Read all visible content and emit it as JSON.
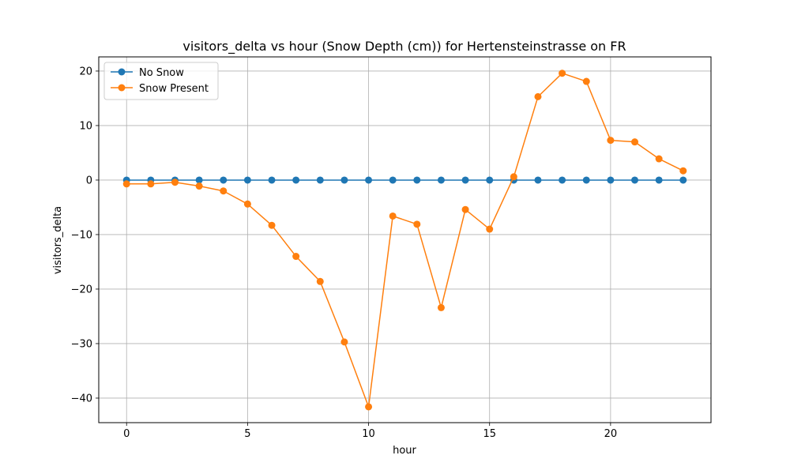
{
  "chart_data": {
    "type": "line",
    "title": "visitors_delta vs hour (Snow Depth (cm)) for Hertensteinstrasse on FR",
    "xlabel": "hour",
    "ylabel": "visitors_delta",
    "xlim": [
      -1.15,
      24.15
    ],
    "ylim": [
      -44.5,
      22.6
    ],
    "xticks": [
      0,
      5,
      10,
      15,
      20
    ],
    "yticks": [
      -40,
      -30,
      -20,
      -10,
      0,
      10,
      20
    ],
    "grid": true,
    "legend_position": "top-left",
    "x": [
      0,
      1,
      2,
      3,
      4,
      5,
      6,
      7,
      8,
      9,
      10,
      11,
      12,
      13,
      14,
      15,
      16,
      17,
      18,
      19,
      20,
      21,
      22,
      23
    ],
    "series": [
      {
        "name": "No Snow",
        "color": "#1f77b4",
        "values": [
          0,
          0,
          0,
          0,
          0,
          0,
          0,
          0,
          0,
          0,
          0,
          0,
          0,
          0,
          0,
          0,
          0,
          0,
          0,
          0,
          0,
          0,
          0,
          0
        ]
      },
      {
        "name": "Snow Present",
        "color": "#ff7f0e",
        "values": [
          -0.7,
          -0.7,
          -0.4,
          -1.1,
          -2.0,
          -4.4,
          -8.3,
          -14.0,
          -18.6,
          -29.7,
          -41.6,
          -6.6,
          -8.1,
          -23.4,
          -5.4,
          -9.0,
          0.6,
          15.3,
          19.6,
          18.1,
          7.3,
          7.0,
          3.9,
          1.7
        ]
      }
    ]
  }
}
